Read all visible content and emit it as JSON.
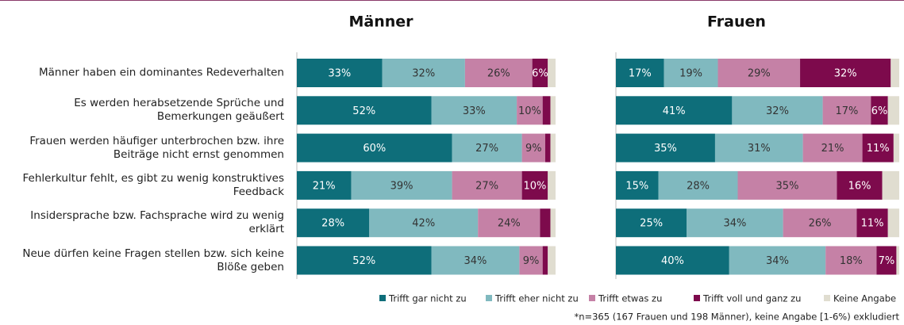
{
  "chart_data": [
    {
      "type": "bar",
      "orientation": "horizontal",
      "stacked": true,
      "title": "Männer",
      "xlim": [
        0,
        100
      ],
      "categories": [
        "Männer haben ein dominantes Redeverhalten",
        "Es werden herabsetzende Sprüche und Bemerkungen geäußert",
        "Frauen werden häufiger unterbrochen bzw. ihre Beiträge nicht ernst genommen",
        "Fehlerkultur fehlt, es gibt zu wenig konstruktives Feedback",
        "Insidersprache bzw. Fachsprache wird zu wenig erklärt",
        "Neue dürfen keine Fragen stellen bzw. sich keine Blöße geben"
      ],
      "series": [
        {
          "name": "Trifft gar nicht zu",
          "color": "#0e6e7a",
          "values": [
            33,
            52,
            60,
            21,
            28,
            52
          ],
          "value_labels": [
            "33%",
            "52%",
            "60%",
            "21%",
            "28%",
            "52%"
          ]
        },
        {
          "name": "Trifft eher nicht zu",
          "color": "#80b9bf",
          "values": [
            32,
            33,
            27,
            39,
            42,
            34
          ],
          "value_labels": [
            "32%",
            "33%",
            "27%",
            "39%",
            "42%",
            "34%"
          ]
        },
        {
          "name": "Trifft etwas zu",
          "color": "#c581a6",
          "values": [
            26,
            10,
            9,
            27,
            24,
            9
          ],
          "value_labels": [
            "26%",
            "10%",
            "9%",
            "27%",
            "24%",
            "9%"
          ]
        },
        {
          "name": "Trifft voll und ganz zu",
          "color": "#7d0a4c",
          "values": [
            6,
            3,
            2,
            10,
            4,
            2
          ],
          "value_labels": [
            "6%",
            null,
            null,
            "10%",
            null,
            null
          ]
        },
        {
          "name": "Keine Angabe",
          "color": "#e0ddd0",
          "values": [
            3,
            2,
            2,
            3,
            2,
            3
          ],
          "value_labels": [
            null,
            null,
            null,
            null,
            null,
            null
          ]
        }
      ],
      "note": "*n=365 (167 Frauen und 198 Männer), keine Angabe [1-6%) exkludiert"
    },
    {
      "type": "bar",
      "orientation": "horizontal",
      "stacked": true,
      "title": "Frauen",
      "xlim": [
        0,
        100
      ],
      "series": [
        {
          "color": "#0e6e7a",
          "values": [
            17,
            41,
            35,
            15,
            25,
            40
          ],
          "value_labels": [
            "17%",
            "41%",
            "35%",
            "15%",
            "25%",
            "40%"
          ]
        },
        {
          "color": "#80b9bf",
          "values": [
            19,
            32,
            31,
            28,
            34,
            34
          ],
          "value_labels": [
            "19%",
            "32%",
            "31%",
            "28%",
            "34%",
            "34%"
          ]
        },
        {
          "color": "#c581a6",
          "values": [
            29,
            17,
            21,
            35,
            26,
            18
          ],
          "value_labels": [
            "29%",
            "17%",
            "21%",
            "35%",
            "26%",
            "18%"
          ]
        },
        {
          "color": "#7d0a4c",
          "values": [
            32,
            6,
            11,
            16,
            11,
            7
          ],
          "value_labels": [
            "32%",
            "6%",
            "11%",
            "16%",
            "11%",
            "7%"
          ]
        },
        {
          "color": "#e0ddd0",
          "values": [
            3,
            4,
            2,
            6,
            4,
            1
          ],
          "value_labels": [
            null,
            null,
            null,
            null,
            null,
            null
          ]
        }
      ]
    }
  ]
}
